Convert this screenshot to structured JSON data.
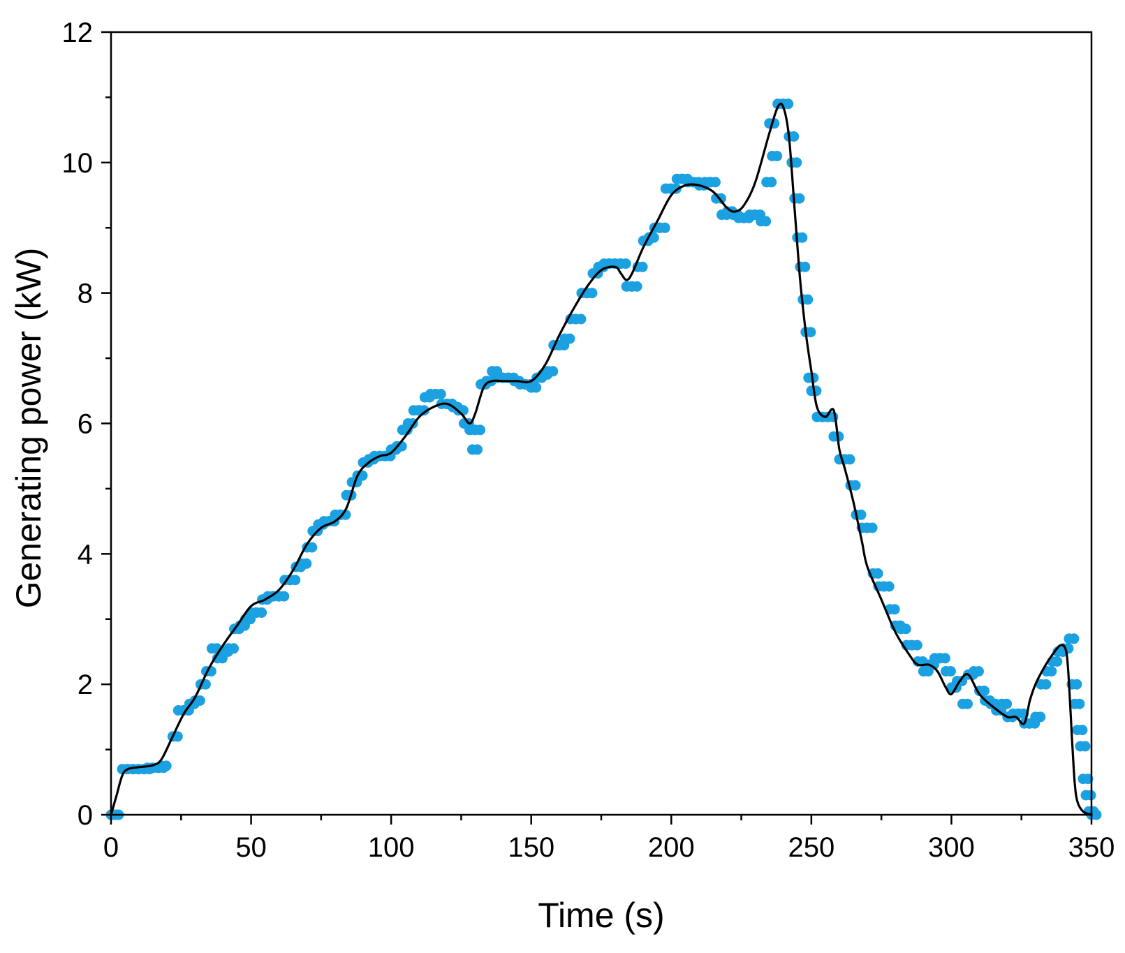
{
  "chart_data": {
    "type": "scatter",
    "title": "",
    "xlabel": "Time (s)",
    "ylabel": "Generating power (kW)",
    "xlim": [
      0,
      350
    ],
    "ylim": [
      0,
      12
    ],
    "x_ticks": [
      "0",
      "50",
      "100",
      "150",
      "200",
      "250",
      "300",
      "350"
    ],
    "y_ticks": [
      "0",
      "2",
      "4",
      "6",
      "8",
      "10",
      "12"
    ],
    "grid": false,
    "legend": "none",
    "colors": {
      "points": "#1ba1e2",
      "line": "#000000",
      "axes": "#000000"
    },
    "series": [
      {
        "type": "scatter",
        "points": [
          [
            0,
            0
          ],
          [
            1,
            0
          ],
          [
            4,
            0.7
          ],
          [
            6,
            0.7
          ],
          [
            8,
            0.7
          ],
          [
            10,
            0.7
          ],
          [
            12,
            0.7
          ],
          [
            13,
            0.72
          ],
          [
            15,
            0.72
          ],
          [
            17,
            0.72
          ],
          [
            18,
            0.75
          ],
          [
            22,
            1.2
          ],
          [
            24,
            1.6
          ],
          [
            26,
            1.6
          ],
          [
            28,
            1.7
          ],
          [
            30,
            1.75
          ],
          [
            32,
            2.0
          ],
          [
            34,
            2.2
          ],
          [
            36,
            2.55
          ],
          [
            38,
            2.4
          ],
          [
            40,
            2.5
          ],
          [
            42,
            2.55
          ],
          [
            44,
            2.85
          ],
          [
            46,
            2.9
          ],
          [
            48,
            3.0
          ],
          [
            50,
            3.1
          ],
          [
            52,
            3.1
          ],
          [
            54,
            3.3
          ],
          [
            56,
            3.35
          ],
          [
            58,
            3.35
          ],
          [
            60,
            3.35
          ],
          [
            62,
            3.6
          ],
          [
            64,
            3.6
          ],
          [
            66,
            3.8
          ],
          [
            68,
            3.85
          ],
          [
            70,
            4.1
          ],
          [
            72,
            4.35
          ],
          [
            74,
            4.45
          ],
          [
            76,
            4.5
          ],
          [
            78,
            4.5
          ],
          [
            80,
            4.6
          ],
          [
            82,
            4.6
          ],
          [
            84,
            4.9
          ],
          [
            86,
            5.1
          ],
          [
            88,
            5.2
          ],
          [
            90,
            5.4
          ],
          [
            92,
            5.45
          ],
          [
            94,
            5.5
          ],
          [
            96,
            5.5
          ],
          [
            98,
            5.5
          ],
          [
            100,
            5.6
          ],
          [
            102,
            5.65
          ],
          [
            104,
            5.9
          ],
          [
            106,
            6.0
          ],
          [
            108,
            6.2
          ],
          [
            110,
            6.2
          ],
          [
            112,
            6.4
          ],
          [
            114,
            6.45
          ],
          [
            116,
            6.45
          ],
          [
            118,
            6.3
          ],
          [
            120,
            6.3
          ],
          [
            122,
            6.25
          ],
          [
            124,
            6.2
          ],
          [
            126,
            6.0
          ],
          [
            128,
            5.9
          ],
          [
            129,
            5.6
          ],
          [
            130,
            5.9
          ],
          [
            132,
            6.6
          ],
          [
            134,
            6.65
          ],
          [
            136,
            6.8
          ],
          [
            138,
            6.7
          ],
          [
            140,
            6.7
          ],
          [
            142,
            6.7
          ],
          [
            144,
            6.65
          ],
          [
            146,
            6.6
          ],
          [
            148,
            6.6
          ],
          [
            150,
            6.55
          ],
          [
            152,
            6.7
          ],
          [
            154,
            6.75
          ],
          [
            156,
            6.8
          ],
          [
            158,
            7.2
          ],
          [
            160,
            7.2
          ],
          [
            162,
            7.3
          ],
          [
            164,
            7.6
          ],
          [
            166,
            7.6
          ],
          [
            168,
            8.0
          ],
          [
            170,
            8.0
          ],
          [
            172,
            8.3
          ],
          [
            174,
            8.4
          ],
          [
            176,
            8.45
          ],
          [
            178,
            8.45
          ],
          [
            180,
            8.45
          ],
          [
            182,
            8.45
          ],
          [
            184,
            8.1
          ],
          [
            186,
            8.1
          ],
          [
            188,
            8.4
          ],
          [
            190,
            8.8
          ],
          [
            192,
            8.85
          ],
          [
            194,
            9.0
          ],
          [
            196,
            9.0
          ],
          [
            198,
            9.6
          ],
          [
            200,
            9.6
          ],
          [
            202,
            9.75
          ],
          [
            204,
            9.75
          ],
          [
            206,
            9.7
          ],
          [
            208,
            9.7
          ],
          [
            210,
            9.65
          ],
          [
            212,
            9.7
          ],
          [
            214,
            9.7
          ],
          [
            216,
            9.45
          ],
          [
            218,
            9.2
          ],
          [
            220,
            9.25
          ],
          [
            222,
            9.2
          ],
          [
            224,
            9.15
          ],
          [
            226,
            9.15
          ],
          [
            228,
            9.2
          ],
          [
            230,
            9.2
          ],
          [
            232,
            9.1
          ],
          [
            234,
            9.7
          ],
          [
            235,
            10.6
          ],
          [
            236,
            10.1
          ],
          [
            238,
            10.9
          ],
          [
            240,
            10.9
          ],
          [
            242,
            10.4
          ],
          [
            243,
            10.0
          ],
          [
            244,
            9.45
          ],
          [
            245,
            8.85
          ],
          [
            246,
            8.4
          ],
          [
            247,
            7.9
          ],
          [
            248,
            7.4
          ],
          [
            249,
            6.7
          ],
          [
            250,
            6.5
          ],
          [
            252,
            6.1
          ],
          [
            254,
            6.1
          ],
          [
            256,
            6.1
          ],
          [
            258,
            5.8
          ],
          [
            260,
            5.45
          ],
          [
            262,
            5.45
          ],
          [
            264,
            5.05
          ],
          [
            266,
            4.6
          ],
          [
            268,
            4.4
          ],
          [
            270,
            4.4
          ],
          [
            272,
            3.7
          ],
          [
            274,
            3.5
          ],
          [
            276,
            3.5
          ],
          [
            278,
            3.15
          ],
          [
            280,
            2.9
          ],
          [
            282,
            2.85
          ],
          [
            284,
            2.6
          ],
          [
            286,
            2.6
          ],
          [
            288,
            2.35
          ],
          [
            290,
            2.2
          ],
          [
            292,
            2.3
          ],
          [
            294,
            2.4
          ],
          [
            296,
            2.4
          ],
          [
            298,
            2.2
          ],
          [
            300,
            1.95
          ],
          [
            302,
            2.05
          ],
          [
            304,
            1.7
          ],
          [
            306,
            2.15
          ],
          [
            308,
            2.2
          ],
          [
            310,
            1.9
          ],
          [
            312,
            1.75
          ],
          [
            314,
            1.7
          ],
          [
            316,
            1.6
          ],
          [
            318,
            1.7
          ],
          [
            320,
            1.5
          ],
          [
            322,
            1.55
          ],
          [
            324,
            1.55
          ],
          [
            326,
            1.4
          ],
          [
            328,
            1.4
          ],
          [
            330,
            1.5
          ],
          [
            332,
            2.0
          ],
          [
            334,
            2.2
          ],
          [
            336,
            2.35
          ],
          [
            338,
            2.5
          ],
          [
            340,
            2.55
          ],
          [
            342,
            2.7
          ],
          [
            343,
            2.0
          ],
          [
            344,
            1.7
          ],
          [
            345,
            1.3
          ],
          [
            346,
            1.05
          ],
          [
            347,
            0.55
          ],
          [
            348,
            0.3
          ],
          [
            349,
            0.05
          ],
          [
            350,
            0
          ]
        ]
      },
      {
        "type": "line",
        "points": [
          [
            0,
            0
          ],
          [
            2,
            0.3
          ],
          [
            4,
            0.6
          ],
          [
            6,
            0.7
          ],
          [
            10,
            0.73
          ],
          [
            15,
            0.76
          ],
          [
            18,
            0.85
          ],
          [
            22,
            1.2
          ],
          [
            26,
            1.55
          ],
          [
            30,
            1.8
          ],
          [
            35,
            2.25
          ],
          [
            40,
            2.6
          ],
          [
            45,
            2.9
          ],
          [
            50,
            3.2
          ],
          [
            55,
            3.3
          ],
          [
            60,
            3.45
          ],
          [
            65,
            3.75
          ],
          [
            70,
            4.15
          ],
          [
            75,
            4.4
          ],
          [
            80,
            4.5
          ],
          [
            84,
            4.7
          ],
          [
            88,
            5.2
          ],
          [
            92,
            5.4
          ],
          [
            96,
            5.5
          ],
          [
            100,
            5.55
          ],
          [
            105,
            5.8
          ],
          [
            110,
            6.1
          ],
          [
            115,
            6.25
          ],
          [
            120,
            6.3
          ],
          [
            125,
            6.15
          ],
          [
            128,
            6.0
          ],
          [
            130,
            6.15
          ],
          [
            133,
            6.55
          ],
          [
            136,
            6.65
          ],
          [
            140,
            6.65
          ],
          [
            145,
            6.65
          ],
          [
            150,
            6.65
          ],
          [
            155,
            6.9
          ],
          [
            160,
            7.35
          ],
          [
            165,
            7.75
          ],
          [
            170,
            8.1
          ],
          [
            175,
            8.35
          ],
          [
            180,
            8.4
          ],
          [
            182,
            8.3
          ],
          [
            184,
            8.2
          ],
          [
            186,
            8.3
          ],
          [
            190,
            8.7
          ],
          [
            195,
            9.1
          ],
          [
            200,
            9.5
          ],
          [
            205,
            9.65
          ],
          [
            210,
            9.65
          ],
          [
            215,
            9.55
          ],
          [
            220,
            9.3
          ],
          [
            223,
            9.25
          ],
          [
            226,
            9.35
          ],
          [
            230,
            9.7
          ],
          [
            235,
            10.45
          ],
          [
            238,
            10.85
          ],
          [
            240,
            10.85
          ],
          [
            242,
            10.4
          ],
          [
            244,
            9.3
          ],
          [
            246,
            8.2
          ],
          [
            248,
            7.4
          ],
          [
            250,
            6.8
          ],
          [
            252,
            6.25
          ],
          [
            255,
            6.1
          ],
          [
            258,
            6.2
          ],
          [
            260,
            5.6
          ],
          [
            262,
            5.3
          ],
          [
            265,
            4.8
          ],
          [
            268,
            4.2
          ],
          [
            270,
            3.8
          ],
          [
            275,
            3.3
          ],
          [
            280,
            2.8
          ],
          [
            285,
            2.45
          ],
          [
            288,
            2.3
          ],
          [
            292,
            2.3
          ],
          [
            295,
            2.2
          ],
          [
            298,
            1.95
          ],
          [
            300,
            1.85
          ],
          [
            303,
            2.05
          ],
          [
            306,
            2.15
          ],
          [
            310,
            1.85
          ],
          [
            315,
            1.65
          ],
          [
            320,
            1.5
          ],
          [
            323,
            1.5
          ],
          [
            326,
            1.4
          ],
          [
            328,
            1.75
          ],
          [
            330,
            2.0
          ],
          [
            333,
            2.25
          ],
          [
            336,
            2.45
          ],
          [
            339,
            2.6
          ],
          [
            341,
            2.5
          ],
          [
            342,
            2.0
          ],
          [
            343,
            1.2
          ],
          [
            344,
            0.5
          ],
          [
            345,
            0.2
          ],
          [
            347,
            0.05
          ],
          [
            350,
            0
          ]
        ]
      }
    ]
  }
}
